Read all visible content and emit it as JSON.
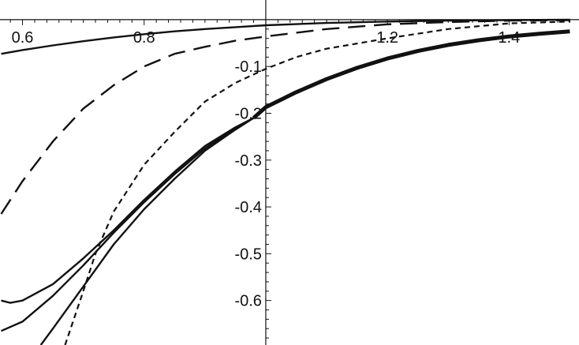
{
  "chart_data": {
    "type": "line",
    "title": "",
    "xlabel": "",
    "ylabel": "",
    "xlim": [
      0.563,
      1.515
    ],
    "ylim": [
      -0.695,
      0.042
    ],
    "origin": {
      "x": 1.0,
      "y": 0.0
    },
    "grid": false,
    "legend": "none",
    "x_ticks": [
      {
        "value": 0.6,
        "label": "0.6"
      },
      {
        "value": 0.8,
        "label": "0.8"
      },
      {
        "value": 1.2,
        "label": "1.2"
      },
      {
        "value": 1.4,
        "label": "1.4"
      }
    ],
    "y_ticks": [
      {
        "value": -0.1,
        "label": "-0.1"
      },
      {
        "value": -0.2,
        "label": "-0.2"
      },
      {
        "value": -0.3,
        "label": "-0.3"
      },
      {
        "value": -0.4,
        "label": "-0.4"
      },
      {
        "value": -0.5,
        "label": "-0.5"
      },
      {
        "value": -0.6,
        "label": "-0.6"
      }
    ],
    "series": [
      {
        "style": "thin-solid",
        "color": "#111111",
        "points": [
          [
            0.565,
            -0.073
          ],
          [
            0.6,
            -0.065
          ],
          [
            0.65,
            -0.055
          ],
          [
            0.7,
            -0.046
          ],
          [
            0.75,
            -0.038
          ],
          [
            0.8,
            -0.031
          ],
          [
            0.85,
            -0.025
          ],
          [
            0.9,
            -0.02
          ],
          [
            0.95,
            -0.016
          ],
          [
            1.0,
            -0.012
          ],
          [
            1.1,
            -0.007
          ],
          [
            1.2,
            -0.004
          ],
          [
            1.3,
            -0.002
          ],
          [
            1.4,
            -0.001
          ],
          [
            1.5,
            0.0
          ]
        ]
      },
      {
        "style": "long-dash",
        "color": "#111111",
        "points": [
          [
            0.565,
            -0.415
          ],
          [
            0.6,
            -0.345
          ],
          [
            0.65,
            -0.26
          ],
          [
            0.7,
            -0.19
          ],
          [
            0.75,
            -0.14
          ],
          [
            0.8,
            -0.1
          ],
          [
            0.85,
            -0.073
          ],
          [
            0.9,
            -0.058
          ],
          [
            0.95,
            -0.045
          ],
          [
            1.0,
            -0.036
          ],
          [
            1.1,
            -0.02
          ],
          [
            1.2,
            -0.01
          ],
          [
            1.3,
            -0.005
          ],
          [
            1.4,
            -0.002
          ],
          [
            1.5,
            -0.001
          ]
        ]
      },
      {
        "style": "short-dash",
        "color": "#111111",
        "points": [
          [
            0.67,
            -0.695
          ],
          [
            0.7,
            -0.58
          ],
          [
            0.72,
            -0.5
          ],
          [
            0.75,
            -0.41
          ],
          [
            0.8,
            -0.31
          ],
          [
            0.85,
            -0.24
          ],
          [
            0.9,
            -0.175
          ],
          [
            0.95,
            -0.135
          ],
          [
            1.0,
            -0.105
          ],
          [
            1.05,
            -0.08
          ],
          [
            1.1,
            -0.062
          ],
          [
            1.2,
            -0.04
          ],
          [
            1.3,
            -0.02
          ],
          [
            1.4,
            -0.008
          ],
          [
            1.5,
            -0.004
          ]
        ]
      },
      {
        "style": "thin-solid",
        "color": "#111111",
        "points": [
          [
            0.63,
            -0.695
          ],
          [
            0.65,
            -0.66
          ],
          [
            0.7,
            -0.57
          ],
          [
            0.75,
            -0.48
          ],
          [
            0.8,
            -0.405
          ],
          [
            0.85,
            -0.34
          ],
          [
            0.9,
            -0.28
          ],
          [
            0.95,
            -0.235
          ],
          [
            0.98,
            -0.21
          ]
        ]
      },
      {
        "style": "thin-solid",
        "color": "#111111",
        "points": [
          [
            0.565,
            -0.665
          ],
          [
            0.6,
            -0.645
          ],
          [
            0.65,
            -0.59
          ],
          [
            0.7,
            -0.525
          ],
          [
            0.75,
            -0.455
          ],
          [
            0.8,
            -0.39
          ],
          [
            0.85,
            -0.33
          ],
          [
            0.9,
            -0.275
          ],
          [
            0.95,
            -0.232
          ],
          [
            0.98,
            -0.21
          ]
        ]
      },
      {
        "style": "thin-solid",
        "color": "#111111",
        "points": [
          [
            0.565,
            -0.6
          ],
          [
            0.58,
            -0.605
          ],
          [
            0.6,
            -0.6
          ],
          [
            0.65,
            -0.565
          ],
          [
            0.7,
            -0.51
          ],
          [
            0.75,
            -0.45
          ],
          [
            0.8,
            -0.385
          ],
          [
            0.85,
            -0.325
          ],
          [
            0.9,
            -0.27
          ],
          [
            0.95,
            -0.23
          ],
          [
            0.98,
            -0.21
          ]
        ]
      },
      {
        "style": "thick-solid",
        "color": "#111111",
        "points": [
          [
            0.98,
            -0.21
          ],
          [
            1.0,
            -0.187
          ],
          [
            1.05,
            -0.155
          ],
          [
            1.1,
            -0.127
          ],
          [
            1.15,
            -0.103
          ],
          [
            1.2,
            -0.083
          ],
          [
            1.25,
            -0.067
          ],
          [
            1.3,
            -0.054
          ],
          [
            1.35,
            -0.044
          ],
          [
            1.4,
            -0.036
          ],
          [
            1.45,
            -0.03
          ],
          [
            1.5,
            -0.025
          ]
        ]
      }
    ]
  }
}
